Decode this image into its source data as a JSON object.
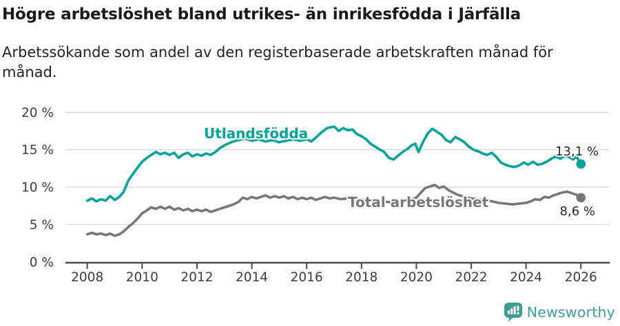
{
  "chart_data": {
    "type": "line",
    "title": "Högre arbetslöshet bland utrikes- än inrikesfödda i Järfälla",
    "subtitle_lines": [
      "Arbetssökande som andel av den registerbaserade arbetskraften månad för",
      "månad."
    ],
    "x_ticks": [
      2008,
      2010,
      2012,
      2014,
      2016,
      2018,
      2020,
      2022,
      2024,
      2026
    ],
    "y_ticks": [
      0,
      5,
      10,
      15,
      20
    ],
    "y_tick_suffix": " %",
    "xlim": [
      2007.2,
      2027.05
    ],
    "ylim": [
      0,
      20
    ],
    "grid": "y",
    "legend_position": "inline-labels",
    "series": [
      {
        "name": "Utlandsfödda",
        "color": "#00a299",
        "end_label": "13,1 %",
        "end_value": 13.1,
        "points": [
          [
            2008.0,
            8.2
          ],
          [
            2008.17,
            8.5
          ],
          [
            2008.33,
            8.1
          ],
          [
            2008.5,
            8.4
          ],
          [
            2008.67,
            8.2
          ],
          [
            2008.83,
            8.8
          ],
          [
            2009.0,
            8.3
          ],
          [
            2009.17,
            8.7
          ],
          [
            2009.33,
            9.4
          ],
          [
            2009.5,
            10.9
          ],
          [
            2009.67,
            11.8
          ],
          [
            2009.83,
            12.6
          ],
          [
            2010.0,
            13.4
          ],
          [
            2010.17,
            13.9
          ],
          [
            2010.33,
            14.3
          ],
          [
            2010.5,
            14.7
          ],
          [
            2010.67,
            14.4
          ],
          [
            2010.83,
            14.6
          ],
          [
            2011.0,
            14.3
          ],
          [
            2011.17,
            14.6
          ],
          [
            2011.33,
            13.9
          ],
          [
            2011.5,
            14.4
          ],
          [
            2011.67,
            14.6
          ],
          [
            2011.83,
            14.1
          ],
          [
            2012.0,
            14.4
          ],
          [
            2012.17,
            14.2
          ],
          [
            2012.33,
            14.5
          ],
          [
            2012.5,
            14.3
          ],
          [
            2012.67,
            14.7
          ],
          [
            2012.83,
            15.2
          ],
          [
            2013.0,
            15.6
          ],
          [
            2013.25,
            16.0
          ],
          [
            2013.5,
            16.3
          ],
          [
            2013.75,
            16.5
          ],
          [
            2014.0,
            16.2
          ],
          [
            2014.25,
            16.4
          ],
          [
            2014.5,
            16.1
          ],
          [
            2014.75,
            16.3
          ],
          [
            2015.0,
            16.0
          ],
          [
            2015.25,
            16.2
          ],
          [
            2015.5,
            16.4
          ],
          [
            2015.75,
            16.2
          ],
          [
            2016.0,
            16.4
          ],
          [
            2016.17,
            16.1
          ],
          [
            2016.33,
            16.6
          ],
          [
            2016.5,
            17.2
          ],
          [
            2016.75,
            17.9
          ],
          [
            2017.0,
            18.1
          ],
          [
            2017.17,
            17.5
          ],
          [
            2017.33,
            17.9
          ],
          [
            2017.5,
            17.6
          ],
          [
            2017.67,
            17.7
          ],
          [
            2017.83,
            17.1
          ],
          [
            2018.0,
            16.8
          ],
          [
            2018.17,
            16.4
          ],
          [
            2018.33,
            15.8
          ],
          [
            2018.5,
            15.4
          ],
          [
            2018.67,
            15.0
          ],
          [
            2018.83,
            14.7
          ],
          [
            2019.0,
            13.9
          ],
          [
            2019.17,
            13.7
          ],
          [
            2019.33,
            14.2
          ],
          [
            2019.5,
            14.7
          ],
          [
            2019.67,
            15.1
          ],
          [
            2019.83,
            15.6
          ],
          [
            2019.96,
            15.8
          ],
          [
            2020.08,
            14.7
          ],
          [
            2020.25,
            16.1
          ],
          [
            2020.42,
            17.2
          ],
          [
            2020.58,
            17.8
          ],
          [
            2020.75,
            17.4
          ],
          [
            2020.92,
            17.0
          ],
          [
            2021.08,
            16.3
          ],
          [
            2021.25,
            16.0
          ],
          [
            2021.42,
            16.7
          ],
          [
            2021.58,
            16.4
          ],
          [
            2021.75,
            16.0
          ],
          [
            2021.92,
            15.4
          ],
          [
            2022.08,
            15.0
          ],
          [
            2022.25,
            14.8
          ],
          [
            2022.42,
            14.5
          ],
          [
            2022.58,
            14.3
          ],
          [
            2022.75,
            14.6
          ],
          [
            2022.92,
            14.0
          ],
          [
            2023.08,
            13.3
          ],
          [
            2023.25,
            13.0
          ],
          [
            2023.42,
            12.8
          ],
          [
            2023.58,
            12.7
          ],
          [
            2023.75,
            12.9
          ],
          [
            2023.92,
            13.3
          ],
          [
            2024.08,
            13.0
          ],
          [
            2024.25,
            13.4
          ],
          [
            2024.42,
            13.0
          ],
          [
            2024.58,
            13.1
          ],
          [
            2024.75,
            13.4
          ],
          [
            2024.92,
            13.8
          ],
          [
            2025.08,
            14.1
          ],
          [
            2025.25,
            13.8
          ],
          [
            2025.42,
            14.2
          ],
          [
            2025.58,
            14.0
          ],
          [
            2025.71,
            13.7
          ],
          [
            2025.83,
            14.1
          ],
          [
            2026.0,
            13.1
          ]
        ]
      },
      {
        "name": "Total arbetslöshet",
        "color": "#76767c",
        "end_label": "8,6 %",
        "end_value": 8.6,
        "points": [
          [
            2008.0,
            3.7
          ],
          [
            2008.17,
            3.9
          ],
          [
            2008.33,
            3.7
          ],
          [
            2008.5,
            3.8
          ],
          [
            2008.67,
            3.6
          ],
          [
            2008.83,
            3.8
          ],
          [
            2009.0,
            3.5
          ],
          [
            2009.17,
            3.7
          ],
          [
            2009.33,
            4.1
          ],
          [
            2009.5,
            4.7
          ],
          [
            2009.67,
            5.2
          ],
          [
            2009.83,
            5.8
          ],
          [
            2010.0,
            6.5
          ],
          [
            2010.17,
            6.9
          ],
          [
            2010.33,
            7.3
          ],
          [
            2010.5,
            7.1
          ],
          [
            2010.67,
            7.4
          ],
          [
            2010.83,
            7.1
          ],
          [
            2011.0,
            7.4
          ],
          [
            2011.17,
            7.0
          ],
          [
            2011.33,
            7.2
          ],
          [
            2011.5,
            6.9
          ],
          [
            2011.67,
            7.1
          ],
          [
            2011.83,
            6.8
          ],
          [
            2012.0,
            7.0
          ],
          [
            2012.17,
            6.8
          ],
          [
            2012.33,
            7.0
          ],
          [
            2012.5,
            6.7
          ],
          [
            2012.67,
            6.9
          ],
          [
            2012.83,
            7.1
          ],
          [
            2013.0,
            7.3
          ],
          [
            2013.17,
            7.5
          ],
          [
            2013.33,
            7.7
          ],
          [
            2013.5,
            8.0
          ],
          [
            2013.67,
            8.6
          ],
          [
            2013.83,
            8.4
          ],
          [
            2014.0,
            8.7
          ],
          [
            2014.17,
            8.5
          ],
          [
            2014.33,
            8.7
          ],
          [
            2014.5,
            8.9
          ],
          [
            2014.67,
            8.6
          ],
          [
            2014.83,
            8.8
          ],
          [
            2015.0,
            8.6
          ],
          [
            2015.17,
            8.8
          ],
          [
            2015.33,
            8.5
          ],
          [
            2015.5,
            8.7
          ],
          [
            2015.67,
            8.4
          ],
          [
            2015.83,
            8.6
          ],
          [
            2016.0,
            8.4
          ],
          [
            2016.17,
            8.6
          ],
          [
            2016.33,
            8.3
          ],
          [
            2016.5,
            8.5
          ],
          [
            2016.67,
            8.7
          ],
          [
            2016.83,
            8.5
          ],
          [
            2017.0,
            8.6
          ],
          [
            2017.25,
            8.4
          ],
          [
            2017.5,
            8.5
          ],
          [
            2017.75,
            8.2
          ],
          [
            2018.0,
            8.4
          ],
          [
            2018.25,
            8.2
          ],
          [
            2018.5,
            8.4
          ],
          [
            2018.75,
            8.1
          ],
          [
            2019.0,
            8.0
          ],
          [
            2019.25,
            8.2
          ],
          [
            2019.5,
            8.0
          ],
          [
            2019.75,
            8.3
          ],
          [
            2020.0,
            8.6
          ],
          [
            2020.17,
            9.3
          ],
          [
            2020.33,
            9.9
          ],
          [
            2020.5,
            10.1
          ],
          [
            2020.67,
            10.3
          ],
          [
            2020.83,
            9.9
          ],
          [
            2021.0,
            10.1
          ],
          [
            2021.17,
            9.6
          ],
          [
            2021.33,
            9.3
          ],
          [
            2021.5,
            9.0
          ],
          [
            2021.67,
            8.8
          ],
          [
            2021.83,
            8.6
          ],
          [
            2022.0,
            8.5
          ],
          [
            2022.25,
            8.4
          ],
          [
            2022.5,
            8.3
          ],
          [
            2022.75,
            8.1
          ],
          [
            2023.0,
            7.9
          ],
          [
            2023.25,
            7.8
          ],
          [
            2023.5,
            7.7
          ],
          [
            2023.75,
            7.8
          ],
          [
            2024.0,
            7.9
          ],
          [
            2024.17,
            8.1
          ],
          [
            2024.33,
            8.4
          ],
          [
            2024.5,
            8.3
          ],
          [
            2024.67,
            8.7
          ],
          [
            2024.83,
            8.6
          ],
          [
            2025.0,
            8.9
          ],
          [
            2025.17,
            9.1
          ],
          [
            2025.33,
            9.3
          ],
          [
            2025.5,
            9.4
          ],
          [
            2025.67,
            9.2
          ],
          [
            2025.83,
            9.0
          ],
          [
            2026.0,
            8.6
          ]
        ]
      }
    ]
  },
  "footer": {
    "brand": "Newsworthy"
  },
  "colors": {
    "accent_teal": "#00a299",
    "series_gray": "#76767c",
    "gridline": "#d9d9d9",
    "axis": "#4a4a4a",
    "tick_label": "#3d3d3d",
    "value_label": "#262626",
    "logo_teal": "#3e9c98"
  }
}
